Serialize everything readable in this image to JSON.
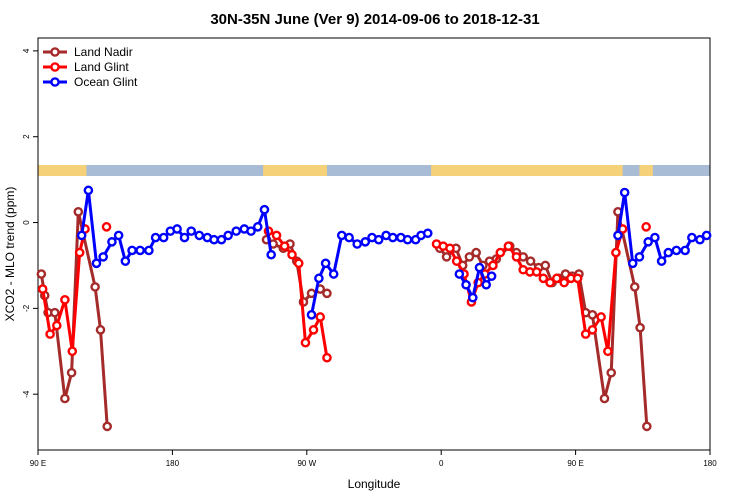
{
  "chart_data": {
    "type": "line",
    "title": "30N-35N June (Ver 9)   2014-09-06 to 2018-12-31",
    "xlabel": "Longitude",
    "ylabel": "XCO2 - MLO trend (ppm)",
    "xlim": [
      0,
      1
    ],
    "ylim": [
      -5.3,
      4.3
    ],
    "grid": false,
    "legend_position": "top-left",
    "x_ticks": [
      {
        "x": 0.0,
        "label": "90 E"
      },
      {
        "x": 0.2,
        "label": "180"
      },
      {
        "x": 0.4,
        "label": "90 W"
      },
      {
        "x": 0.6,
        "label": "0"
      },
      {
        "x": 0.8,
        "label": "90 E"
      },
      {
        "x": 1.0,
        "label": "180"
      }
    ],
    "y_ticks": [
      -4,
      -2,
      0,
      2,
      4
    ],
    "colors": {
      "Land Nadir": "#a52a2a",
      "Land Glint": "#ff0000",
      "Ocean Glint": "#0000ff",
      "land_band": "#f5d27a",
      "ocean_band": "#a9bcd6"
    },
    "series": [
      {
        "name": "Land Nadir",
        "segments": [
          [
            [
              0.005,
              -1.2
            ],
            [
              0.01,
              -1.7
            ],
            [
              0.015,
              -2.1
            ],
            [
              0.025,
              -2.1
            ],
            [
              0.04,
              -4.1
            ],
            [
              0.05,
              -3.5
            ],
            [
              0.06,
              0.25
            ],
            [
              0.085,
              -1.5
            ],
            [
              0.093,
              -2.5
            ],
            [
              0.103,
              -4.75
            ]
          ],
          [
            [
              0.34,
              -0.4
            ],
            [
              0.35,
              -0.5
            ],
            [
              0.365,
              -0.6
            ],
            [
              0.375,
              -0.5
            ],
            [
              0.385,
              -0.9
            ],
            [
              0.395,
              -1.85
            ],
            [
              0.407,
              -1.65
            ],
            [
              0.42,
              -1.55
            ],
            [
              0.43,
              -1.65
            ]
          ],
          [
            [
              0.598,
              -0.6
            ],
            [
              0.608,
              -0.8
            ],
            [
              0.622,
              -0.6
            ],
            [
              0.632,
              -1.0
            ],
            [
              0.642,
              -0.8
            ],
            [
              0.652,
              -0.7
            ],
            [
              0.662,
              -1.0
            ],
            [
              0.672,
              -0.9
            ],
            [
              0.682,
              -0.85
            ],
            [
              0.702,
              -0.55
            ],
            [
              0.712,
              -0.7
            ],
            [
              0.722,
              -0.8
            ],
            [
              0.733,
              -0.9
            ],
            [
              0.745,
              -1.05
            ],
            [
              0.755,
              -1.0
            ],
            [
              0.765,
              -1.4
            ],
            [
              0.775,
              -1.3
            ],
            [
              0.785,
              -1.2
            ],
            [
              0.795,
              -1.25
            ],
            [
              0.805,
              -1.2
            ],
            [
              0.815,
              -2.1
            ],
            [
              0.825,
              -2.15
            ],
            [
              0.843,
              -4.1
            ],
            [
              0.853,
              -3.5
            ],
            [
              0.863,
              0.25
            ],
            [
              0.888,
              -1.5
            ],
            [
              0.896,
              -2.45
            ],
            [
              0.906,
              -4.75
            ]
          ]
        ]
      },
      {
        "name": "Land Glint",
        "segments": [
          [
            [
              0.007,
              -1.55
            ],
            [
              0.018,
              -2.6
            ],
            [
              0.028,
              -2.4
            ],
            [
              0.04,
              -1.8
            ],
            [
              0.051,
              -3.0
            ],
            [
              0.062,
              -0.7
            ],
            [
              0.07,
              -0.15
            ]
          ],
          [
            [
              0.102,
              -0.1
            ]
          ],
          [
            [
              0.343,
              -0.2
            ],
            [
              0.355,
              -0.3
            ],
            [
              0.367,
              -0.55
            ],
            [
              0.378,
              -0.75
            ],
            [
              0.388,
              -0.95
            ],
            [
              0.398,
              -2.8
            ],
            [
              0.41,
              -2.5
            ],
            [
              0.42,
              -2.2
            ],
            [
              0.43,
              -3.15
            ]
          ],
          [
            [
              0.593,
              -0.5
            ],
            [
              0.603,
              -0.55
            ],
            [
              0.613,
              -0.6
            ],
            [
              0.623,
              -0.9
            ],
            [
              0.634,
              -1.2
            ],
            [
              0.645,
              -1.85
            ],
            [
              0.655,
              -1.4
            ],
            [
              0.665,
              -1.2
            ],
            [
              0.677,
              -1.0
            ],
            [
              0.688,
              -0.7
            ],
            [
              0.7,
              -0.55
            ],
            [
              0.712,
              -0.8
            ],
            [
              0.722,
              -1.1
            ],
            [
              0.732,
              -1.15
            ],
            [
              0.742,
              -1.15
            ],
            [
              0.752,
              -1.3
            ],
            [
              0.762,
              -1.4
            ],
            [
              0.772,
              -1.3
            ],
            [
              0.783,
              -1.4
            ],
            [
              0.793,
              -1.3
            ],
            [
              0.803,
              -1.3
            ],
            [
              0.815,
              -2.6
            ],
            [
              0.825,
              -2.5
            ],
            [
              0.838,
              -2.2
            ],
            [
              0.848,
              -3.0
            ],
            [
              0.86,
              -0.7
            ],
            [
              0.87,
              -0.15
            ]
          ],
          [
            [
              0.905,
              -0.1
            ]
          ]
        ]
      },
      {
        "name": "Ocean Glint",
        "segments": [
          [
            [
              0.065,
              -0.3
            ],
            [
              0.075,
              0.75
            ],
            [
              0.087,
              -0.95
            ],
            [
              0.097,
              -0.8
            ],
            [
              0.11,
              -0.45
            ],
            [
              0.12,
              -0.3
            ],
            [
              0.13,
              -0.9
            ],
            [
              0.14,
              -0.65
            ],
            [
              0.152,
              -0.65
            ],
            [
              0.165,
              -0.65
            ],
            [
              0.175,
              -0.35
            ],
            [
              0.187,
              -0.35
            ],
            [
              0.197,
              -0.2
            ],
            [
              0.207,
              -0.15
            ],
            [
              0.218,
              -0.35
            ],
            [
              0.228,
              -0.2
            ],
            [
              0.24,
              -0.3
            ],
            [
              0.252,
              -0.35
            ],
            [
              0.262,
              -0.4
            ],
            [
              0.273,
              -0.4
            ],
            [
              0.283,
              -0.3
            ],
            [
              0.295,
              -0.2
            ],
            [
              0.307,
              -0.15
            ],
            [
              0.317,
              -0.2
            ],
            [
              0.327,
              -0.1
            ],
            [
              0.337,
              0.3
            ],
            [
              0.347,
              -0.75
            ]
          ],
          [
            [
              0.407,
              -2.15
            ],
            [
              0.418,
              -1.3
            ],
            [
              0.428,
              -0.95
            ],
            [
              0.44,
              -1.2
            ],
            [
              0.452,
              -0.3
            ],
            [
              0.463,
              -0.35
            ],
            [
              0.475,
              -0.5
            ],
            [
              0.487,
              -0.45
            ],
            [
              0.497,
              -0.35
            ],
            [
              0.507,
              -0.4
            ],
            [
              0.518,
              -0.3
            ],
            [
              0.528,
              -0.35
            ],
            [
              0.54,
              -0.35
            ],
            [
              0.55,
              -0.4
            ],
            [
              0.562,
              -0.4
            ],
            [
              0.57,
              -0.3
            ],
            [
              0.58,
              -0.25
            ]
          ],
          [
            [
              0.627,
              -1.2
            ],
            [
              0.637,
              -1.45
            ],
            [
              0.647,
              -1.75
            ],
            [
              0.657,
              -1.05
            ],
            [
              0.667,
              -1.45
            ],
            [
              0.675,
              -1.25
            ]
          ],
          [
            [
              0.863,
              -0.3
            ],
            [
              0.873,
              0.7
            ],
            [
              0.885,
              -0.95
            ],
            [
              0.895,
              -0.8
            ],
            [
              0.908,
              -0.45
            ],
            [
              0.918,
              -0.35
            ],
            [
              0.928,
              -0.9
            ],
            [
              0.938,
              -0.7
            ],
            [
              0.95,
              -0.65
            ],
            [
              0.963,
              -0.65
            ],
            [
              0.973,
              -0.35
            ],
            [
              0.985,
              -0.4
            ],
            [
              0.995,
              -0.3
            ]
          ]
        ]
      }
    ]
  }
}
